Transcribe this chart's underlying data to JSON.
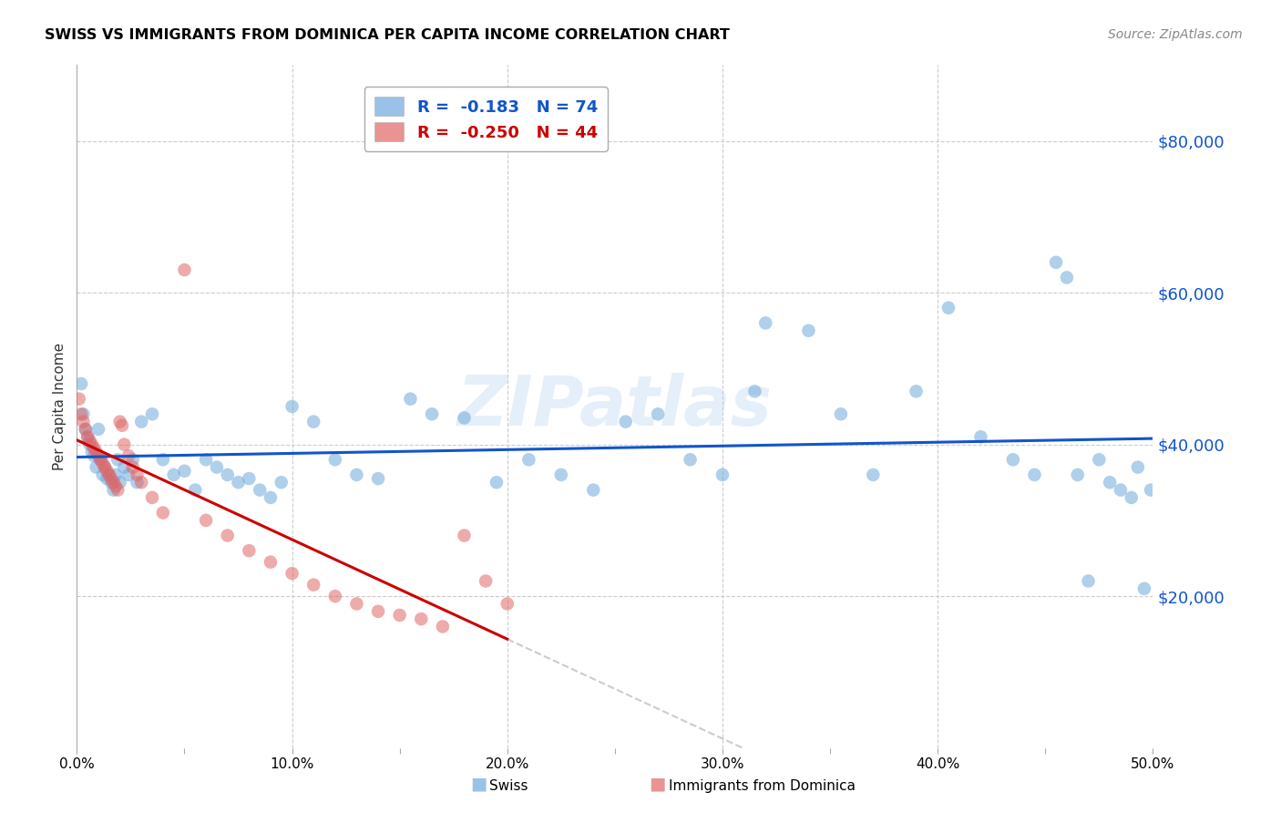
{
  "title": "SWISS VS IMMIGRANTS FROM DOMINICA PER CAPITA INCOME CORRELATION CHART",
  "source": "Source: ZipAtlas.com",
  "ylabel": "Per Capita Income",
  "xlim": [
    0.0,
    0.5
  ],
  "ylim": [
    0,
    90000
  ],
  "xtick_labels": [
    "0.0%",
    "",
    "10.0%",
    "",
    "20.0%",
    "",
    "30.0%",
    "",
    "40.0%",
    "",
    "50.0%"
  ],
  "xtick_vals": [
    0.0,
    0.05,
    0.1,
    0.15,
    0.2,
    0.25,
    0.3,
    0.35,
    0.4,
    0.45,
    0.5
  ],
  "ytick_vals": [
    0,
    20000,
    40000,
    60000,
    80000
  ],
  "swiss_color": "#6fa8dc",
  "dominica_color": "#e06666",
  "swiss_line_color": "#1155cc",
  "dominica_line_color": "#cc0000",
  "dominica_dashed_color": "#cccccc",
  "swiss_R": "-0.183",
  "swiss_N": "74",
  "dominica_R": "-0.250",
  "dominica_N": "44",
  "watermark": "ZIPatlas",
  "swiss_x": [
    0.002,
    0.003,
    0.004,
    0.005,
    0.006,
    0.007,
    0.008,
    0.009,
    0.01,
    0.011,
    0.012,
    0.013,
    0.014,
    0.015,
    0.016,
    0.017,
    0.018,
    0.019,
    0.02,
    0.022,
    0.024,
    0.026,
    0.028,
    0.03,
    0.035,
    0.04,
    0.045,
    0.05,
    0.055,
    0.06,
    0.065,
    0.07,
    0.075,
    0.08,
    0.085,
    0.09,
    0.095,
    0.1,
    0.11,
    0.12,
    0.13,
    0.14,
    0.155,
    0.165,
    0.18,
    0.195,
    0.21,
    0.225,
    0.24,
    0.255,
    0.27,
    0.285,
    0.3,
    0.315,
    0.32,
    0.34,
    0.355,
    0.37,
    0.39,
    0.405,
    0.42,
    0.435,
    0.445,
    0.455,
    0.46,
    0.465,
    0.47,
    0.475,
    0.48,
    0.485,
    0.49,
    0.493,
    0.496,
    0.499
  ],
  "swiss_y": [
    48000,
    44000,
    42000,
    41000,
    40000,
    39000,
    38500,
    37000,
    42000,
    38000,
    36000,
    37000,
    35500,
    36000,
    35000,
    34000,
    36000,
    38000,
    35000,
    37000,
    36000,
    38000,
    35000,
    43000,
    44000,
    38000,
    36000,
    36500,
    34000,
    38000,
    37000,
    36000,
    35000,
    35500,
    34000,
    33000,
    35000,
    45000,
    43000,
    38000,
    36000,
    35500,
    46000,
    44000,
    43500,
    35000,
    38000,
    36000,
    34000,
    43000,
    44000,
    38000,
    36000,
    47000,
    56000,
    55000,
    44000,
    36000,
    47000,
    58000,
    41000,
    38000,
    36000,
    64000,
    62000,
    36000,
    22000,
    38000,
    35000,
    34000,
    33000,
    37000,
    21000,
    34000
  ],
  "dominica_x": [
    0.001,
    0.002,
    0.003,
    0.004,
    0.005,
    0.006,
    0.007,
    0.008,
    0.009,
    0.01,
    0.011,
    0.012,
    0.013,
    0.014,
    0.015,
    0.016,
    0.017,
    0.018,
    0.019,
    0.02,
    0.021,
    0.022,
    0.024,
    0.026,
    0.028,
    0.03,
    0.035,
    0.04,
    0.05,
    0.06,
    0.07,
    0.08,
    0.09,
    0.1,
    0.11,
    0.12,
    0.13,
    0.14,
    0.15,
    0.16,
    0.17,
    0.18,
    0.19,
    0.2
  ],
  "dominica_y": [
    46000,
    44000,
    43000,
    42000,
    41000,
    40500,
    40000,
    39500,
    39000,
    38500,
    38000,
    37500,
    37000,
    36500,
    36000,
    35500,
    35000,
    34500,
    34000,
    43000,
    42500,
    40000,
    38500,
    37000,
    36000,
    35000,
    33000,
    31000,
    63000,
    30000,
    28000,
    26000,
    24500,
    23000,
    21500,
    20000,
    19000,
    18000,
    17500,
    17000,
    16000,
    28000,
    22000,
    19000
  ]
}
